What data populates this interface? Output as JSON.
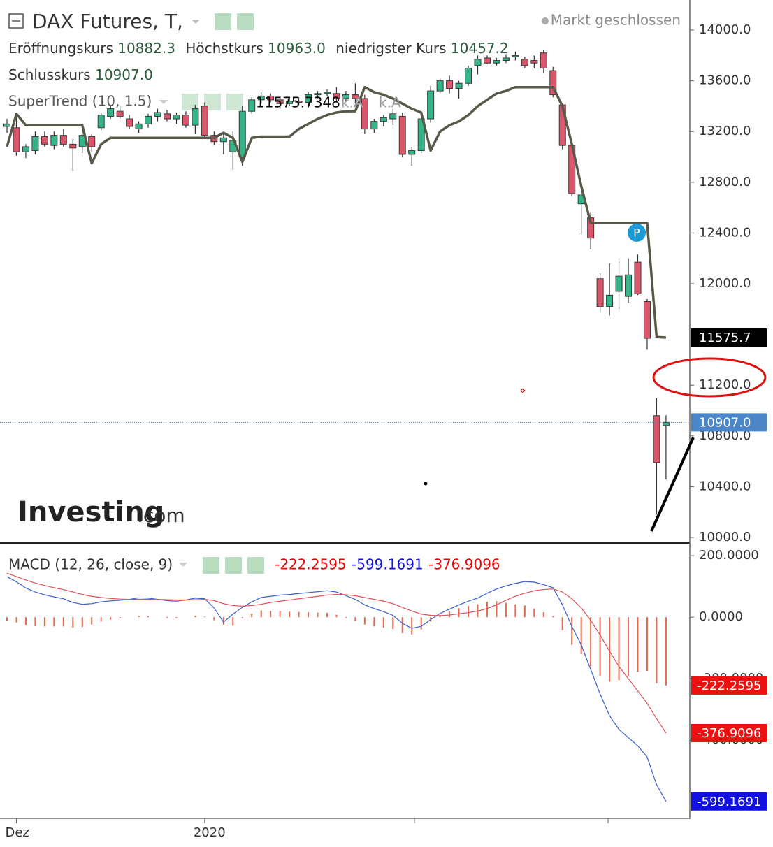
{
  "chart_data": [
    {
      "type": "candlestick",
      "title": "DAX Futures, T,",
      "status": "Markt geschlossen",
      "header": [
        {
          "label": "Eröffnungskurs",
          "value_label": "10882.3"
        },
        {
          "label": "Höchstkurs",
          "value_label": "10963.0"
        },
        {
          "label": "niedrigster Kurs",
          "value_label": "10457.2"
        },
        {
          "label": "Schlusskurs",
          "value_label": "10907.0"
        }
      ],
      "categories": [
        null,
        "Dez",
        null,
        null,
        null,
        null,
        null,
        null,
        null,
        null,
        null,
        null,
        null,
        null,
        null,
        null,
        null,
        null,
        null,
        null,
        null,
        "2020",
        null,
        null,
        null,
        null,
        null,
        null,
        null,
        null,
        null,
        null,
        null,
        null,
        null,
        null,
        null,
        null,
        null,
        null,
        null,
        null,
        null,
        null,
        null,
        null,
        null,
        null,
        null,
        null,
        null,
        null,
        null,
        null,
        null,
        null,
        null,
        null,
        null,
        null,
        null,
        null,
        null,
        null,
        null,
        null,
        null,
        null,
        null,
        null,
        null
      ],
      "open": [
        13240,
        13230,
        13040,
        13050,
        13160,
        13090,
        13170,
        13100,
        13080,
        13160,
        13230,
        13320,
        13360,
        13300,
        13220,
        13260,
        13320,
        13340,
        13300,
        13330,
        13250,
        13400,
        13170,
        13120,
        13040,
        13000,
        13360,
        13450,
        13480,
        13450,
        13420,
        13440,
        13430,
        13490,
        13500,
        13500,
        13460,
        13490,
        13460,
        13220,
        13280,
        13300,
        13320,
        13020,
        13050,
        13300,
        13520,
        13600,
        13540,
        13580,
        13720,
        13780,
        13740,
        13760,
        13790,
        13770,
        13760,
        13820,
        13680,
        13410,
        13090,
        12630,
        12520,
        12040,
        11820,
        11940,
        11900,
        12170,
        11860,
        10960,
        10882.3
      ],
      "high": [
        13300,
        13320,
        13100,
        13200,
        13200,
        13200,
        13220,
        13140,
        13220,
        13180,
        13350,
        13400,
        13400,
        13330,
        13280,
        13340,
        13380,
        13370,
        13350,
        13360,
        13410,
        13430,
        13200,
        13180,
        13200,
        13400,
        13470,
        13510,
        13500,
        13480,
        13460,
        13470,
        13510,
        13520,
        13530,
        13550,
        13520,
        13580,
        13490,
        13300,
        13330,
        13380,
        13350,
        13080,
        13330,
        13560,
        13620,
        13640,
        13600,
        13720,
        13800,
        13800,
        13780,
        13810,
        13830,
        13790,
        13800,
        13840,
        13710,
        13420,
        13110,
        12750,
        12560,
        12080,
        12160,
        12200,
        12200,
        12230,
        11880,
        11100,
        10963
      ],
      "low": [
        13190,
        13010,
        12990,
        13020,
        13080,
        13060,
        13080,
        12890,
        13030,
        13040,
        13210,
        13300,
        13300,
        13220,
        13190,
        13230,
        13280,
        13280,
        13260,
        13230,
        13180,
        13150,
        13090,
        13020,
        12900,
        12930,
        13340,
        13420,
        13430,
        13380,
        13400,
        13410,
        13410,
        13460,
        13480,
        13430,
        13440,
        13420,
        13180,
        13190,
        13240,
        13250,
        13000,
        12930,
        13030,
        13270,
        13500,
        13500,
        13460,
        13560,
        13650,
        13730,
        13720,
        13740,
        13760,
        13700,
        13700,
        13660,
        13470,
        13060,
        12690,
        12390,
        12270,
        11770,
        11750,
        11800,
        11850,
        11910,
        11480,
        10180,
        10457.2
      ],
      "close": [
        13260,
        13040,
        13080,
        13160,
        13100,
        13170,
        13100,
        13070,
        13170,
        13080,
        13330,
        13380,
        13320,
        13240,
        13260,
        13320,
        13350,
        13300,
        13330,
        13250,
        13380,
        13170,
        13120,
        13150,
        13130,
        13360,
        13450,
        13480,
        13450,
        13420,
        13440,
        13430,
        13490,
        13500,
        13510,
        13460,
        13490,
        13460,
        13220,
        13280,
        13310,
        13340,
        13020,
        13050,
        13300,
        13520,
        13600,
        13540,
        13580,
        13700,
        13770,
        13740,
        13760,
        13780,
        13800,
        13720,
        13740,
        13700,
        13490,
        13090,
        12710,
        12700,
        12360,
        11820,
        11910,
        12060,
        12070,
        11920,
        11570,
        10590,
        10907
      ],
      "up_color": "#35b487",
      "down_color": "#d9566b",
      "overlay": {
        "name": "SuperTrend (10, 1.5)",
        "color": "#59594a",
        "extra_labels": [
          "k.A",
          "k.A"
        ],
        "values": [
          13080,
          13340,
          13250,
          13250,
          13250,
          13250,
          13250,
          13250,
          13250,
          12950,
          13100,
          13150,
          13150,
          13150,
          13150,
          13150,
          13150,
          13150,
          13150,
          13150,
          13150,
          13150,
          13150,
          13190,
          13150,
          12960,
          13150,
          13160,
          13160,
          13160,
          13160,
          13220,
          13260,
          13300,
          13330,
          13350,
          13360,
          13360,
          13550,
          13510,
          13490,
          13460,
          13420,
          13380,
          13350,
          13050,
          13200,
          13250,
          13280,
          13330,
          13400,
          13450,
          13500,
          13520,
          13550,
          13550,
          13550,
          13550,
          13550,
          13400,
          13100,
          12770,
          12480,
          12480,
          12480,
          12480,
          12480,
          12480,
          12480,
          11580,
          11575.7348
        ]
      },
      "ylim": [
        9967,
        14237
      ],
      "yticks": [
        {
          "value": 14000,
          "label": "14000.0"
        },
        {
          "value": 13600,
          "label": "13600.0"
        },
        {
          "value": 13200,
          "label": "13200.0"
        },
        {
          "value": 12800,
          "label": "12800.0"
        },
        {
          "value": 12400,
          "label": "12400.0"
        },
        {
          "value": 12000,
          "label": "12000.0"
        },
        {
          "value": 11200,
          "label": "11200.0"
        },
        {
          "value": 10800,
          "label": "10800.0"
        },
        {
          "value": 10400,
          "label": "10400.0"
        },
        {
          "value": 10000,
          "label": "10000.0"
        }
      ],
      "badges": [
        {
          "value": 11575.7,
          "label": "11575.7",
          "color": "#000000"
        },
        {
          "value": 10907.0,
          "label": "10907.0",
          "color": "#4a86c8"
        }
      ],
      "marker_label": "P",
      "logo": [
        "Investing",
        ".com"
      ]
    },
    {
      "type": "macd",
      "title": "MACD (12, 26, close, 9)",
      "histogram": {
        "color": "#e46a50",
        "values": [
          -11,
          -17,
          -26,
          -29,
          -30,
          -30,
          -30,
          -34,
          -32,
          -24,
          -14,
          -8,
          -4,
          0,
          5,
          4,
          0,
          -3,
          -4,
          0,
          5,
          2,
          -10,
          -25,
          -28,
          -4,
          12,
          22,
          20,
          20,
          18,
          17,
          16,
          15,
          14,
          8,
          -3,
          -12,
          -24,
          -30,
          -34,
          -38,
          -52,
          -56,
          -40,
          -14,
          7,
          19,
          29,
          37,
          42,
          50,
          52,
          47,
          42,
          38,
          28,
          16,
          4,
          -42,
          -90,
          -120,
          -160,
          -192,
          -210,
          -205,
          -192,
          -178,
          -175,
          -215,
          -222.2595
        ]
      },
      "macd": {
        "color": "#3a5fcd",
        "values": [
          132,
          115,
          95,
          82,
          73,
          66,
          60,
          48,
          42,
          44,
          50,
          53,
          55,
          58,
          63,
          62,
          58,
          54,
          52,
          56,
          62,
          60,
          30,
          -16,
          10,
          32,
          50,
          64,
          68,
          72,
          74,
          77,
          80,
          83,
          86,
          82,
          70,
          58,
          40,
          28,
          18,
          6,
          -20,
          -36,
          -30,
          -8,
          12,
          26,
          40,
          52,
          62,
          78,
          92,
          102,
          110,
          116,
          114,
          106,
          96,
          40,
          -30,
          -90,
          -170,
          -250,
          -320,
          -365,
          -392,
          -418,
          -455,
          -545,
          -599.1691
        ]
      },
      "signal": {
        "color": "#e0505a",
        "values": [
          143,
          132,
          121,
          111,
          103,
          96,
          90,
          82,
          74,
          68,
          64,
          61,
          59,
          58,
          58,
          58,
          58,
          57,
          56,
          56,
          57,
          58,
          54,
          44,
          38,
          36,
          38,
          42,
          48,
          52,
          56,
          60,
          64,
          68,
          72,
          74,
          73,
          70,
          64,
          58,
          52,
          44,
          32,
          20,
          10,
          6,
          5,
          7,
          11,
          15,
          20,
          28,
          40,
          55,
          68,
          78,
          86,
          90,
          92,
          82,
          60,
          30,
          -10,
          -58,
          -110,
          -160,
          -200,
          -240,
          -280,
          -330,
          -376.9096
        ]
      },
      "ylim": [
        -652,
        239
      ],
      "yticks": [
        {
          "value": 200,
          "label": "200.0000"
        },
        {
          "value": 0,
          "label": "0.0000"
        },
        {
          "value": -200,
          "label": "-200.0000"
        },
        {
          "value": -400,
          "label": "-400.0000"
        }
      ],
      "badges": [
        {
          "value": -222.2595,
          "label": "-222.2595",
          "color": "#ee1111"
        },
        {
          "value": -376.9096,
          "label": "-376.9096",
          "color": "#ee1111"
        },
        {
          "value": -599.1691,
          "label": "-599.1691",
          "color": "#1010e0"
        }
      ]
    }
  ]
}
